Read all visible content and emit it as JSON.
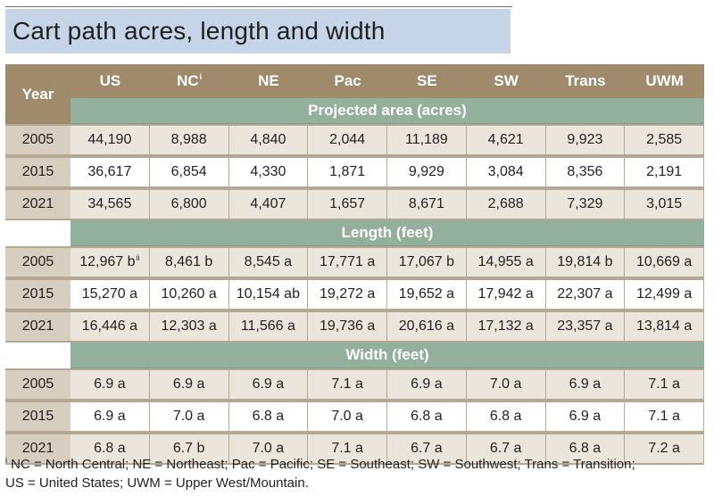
{
  "title": "Cart path acres, length and width",
  "columns": [
    "US",
    "NC",
    "NE",
    "Pac",
    "SE",
    "SW",
    "Trans",
    "UWM"
  ],
  "year_header": "Year",
  "nc_footnote_marker": "i",
  "sections": [
    {
      "label": "Projected area (acres)",
      "rows": [
        {
          "year": "2005",
          "values": [
            "44,190",
            "8,988",
            "4,840",
            "2,044",
            "11,189",
            "4,621",
            "9,923",
            "2,585"
          ]
        },
        {
          "year": "2015",
          "values": [
            "36,617",
            "6,854",
            "4,330",
            "1,871",
            "9,929",
            "3,084",
            "8,356",
            "2,191"
          ]
        },
        {
          "year": "2021",
          "values": [
            "34,565",
            "6,800",
            "4,407",
            "1,657",
            "8,671",
            "2,688",
            "7,329",
            "3,015"
          ]
        }
      ]
    },
    {
      "label": "Length (feet)",
      "rows": [
        {
          "year": "2005",
          "values": [
            "12,967 b",
            "8,461 b",
            "8,545 a",
            "17,771 a",
            "17,067 b",
            "14,955 a",
            "19,814 b",
            "10,669 a"
          ],
          "us_footnote_marker": "ii"
        },
        {
          "year": "2015",
          "values": [
            "15,270 a",
            "10,260 a",
            "10,154 ab",
            "19,272 a",
            "19,652 a",
            "17,942 a",
            "22,307 a",
            "12,499 a"
          ]
        },
        {
          "year": "2021",
          "values": [
            "16,446 a",
            "12,303 a",
            "11,566 a",
            "19,736 a",
            "20,616 a",
            "17,132 a",
            "23,357 a",
            "13,814 a"
          ]
        }
      ]
    },
    {
      "label": "Width (feet)",
      "rows": [
        {
          "year": "2005",
          "values": [
            "6.9 a",
            "6.9 a",
            "6.9 a",
            "7.1 a",
            "6.9 a",
            "7.0 a",
            "6.9 a",
            "7.1 a"
          ]
        },
        {
          "year": "2015",
          "values": [
            "6.9 a",
            "7.0 a",
            "6.8 a",
            "7.0 a",
            "6.8 a",
            "6.8 a",
            "6.9 a",
            "7.1 a"
          ]
        },
        {
          "year": "2021",
          "values": [
            "6.8 a",
            "6.7 b",
            "7.0 a",
            "7.1 a",
            "6.7 a",
            "6.7 a",
            "6.8 a",
            "7.2 a"
          ]
        }
      ]
    }
  ],
  "footnote": {
    "marker": "i",
    "line1": " NC = North Central; NE = Northeast; Pac = Pacific; SE = Southeast; SW = Southwest; Trans = Transition;",
    "line2": "US = United States; UWM = Upper West/Mountain."
  },
  "colors": {
    "title_bg": "#c5d4e6",
    "header_bg": "#9f8a6c",
    "section_bg": "#93b09d",
    "year_cell_bg": "#d6cebf",
    "tan_row_bg": "#ebe6dc",
    "border": "#b4a892"
  }
}
